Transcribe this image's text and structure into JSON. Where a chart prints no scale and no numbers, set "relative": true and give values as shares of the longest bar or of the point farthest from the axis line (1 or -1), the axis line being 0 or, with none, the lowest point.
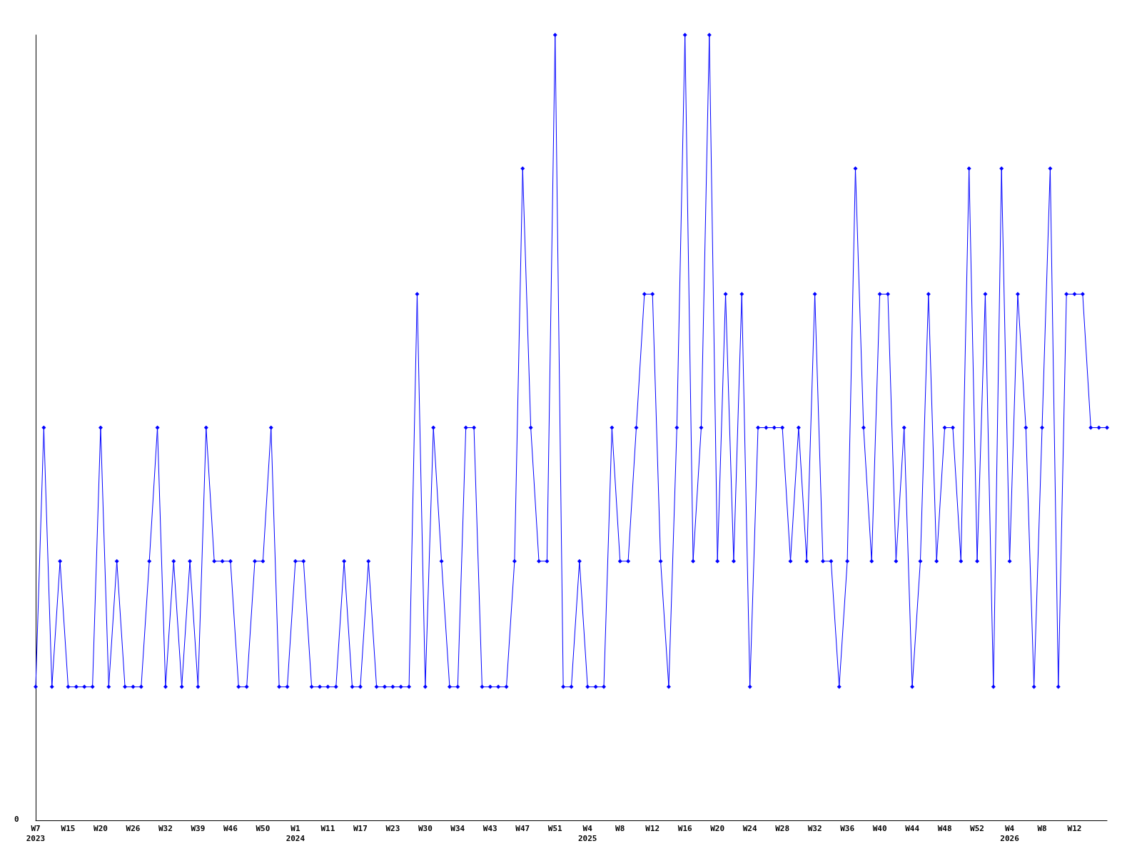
{
  "chart_data": {
    "type": "line",
    "relative": true,
    "marker": "diamond",
    "line_style": "solid",
    "grid": false,
    "annotations": [
      "0"
    ],
    "categories": [
      "W7\n2023",
      null,
      null,
      null,
      "W15",
      null,
      null,
      null,
      "W20",
      null,
      null,
      null,
      "W26",
      null,
      null,
      null,
      "W32",
      null,
      null,
      null,
      "W39",
      null,
      null,
      null,
      "W46",
      null,
      null,
      null,
      "W50",
      null,
      null,
      null,
      "W1\n2024",
      null,
      null,
      null,
      "W11",
      null,
      null,
      null,
      "W17",
      null,
      null,
      null,
      "W23",
      null,
      null,
      null,
      "W30",
      null,
      null,
      null,
      "W34",
      null,
      null,
      null,
      "W43",
      null,
      null,
      null,
      "W47",
      null,
      null,
      null,
      "W51",
      null,
      null,
      null,
      "W4\n2025",
      null,
      null,
      null,
      "W8",
      null,
      null,
      null,
      "W12",
      null,
      null,
      null,
      "W16",
      null,
      null,
      null,
      "W20",
      null,
      null,
      null,
      "W24",
      null,
      null,
      null,
      "W28",
      null,
      null,
      null,
      "W32",
      null,
      null,
      null,
      "W36",
      null,
      null,
      null,
      "W40",
      null,
      null,
      null,
      "W44",
      null,
      null,
      null,
      "W48",
      null,
      null,
      null,
      "W52",
      null,
      null,
      null,
      "W4\n2026",
      null,
      null,
      null,
      "W8",
      null,
      null,
      null,
      "W12",
      null,
      null,
      null,
      null
    ],
    "series": [
      {
        "color": "#0000ff",
        "values": [
          0.17,
          0.5,
          0.17,
          0.33,
          0.17,
          0.17,
          0.17,
          0.17,
          0.5,
          0.17,
          0.33,
          0.17,
          0.17,
          0.17,
          0.33,
          0.5,
          0.17,
          0.33,
          0.17,
          0.33,
          0.17,
          0.5,
          0.33,
          0.33,
          0.33,
          0.17,
          0.17,
          0.33,
          0.33,
          0.5,
          0.17,
          0.17,
          0.33,
          0.33,
          0.17,
          0.17,
          0.17,
          0.17,
          0.33,
          0.17,
          0.17,
          0.33,
          0.17,
          0.17,
          0.17,
          0.17,
          0.17,
          0.67,
          0.17,
          0.5,
          0.33,
          0.17,
          0.17,
          0.5,
          0.5,
          0.17,
          0.17,
          0.17,
          0.17,
          0.33,
          0.83,
          0.5,
          0.33,
          0.33,
          1,
          0.17,
          0.17,
          0.33,
          0.17,
          0.17,
          0.17,
          0.5,
          0.33,
          0.33,
          0.5,
          0.67,
          0.67,
          0.33,
          0.17,
          0.5,
          1,
          0.33,
          0.5,
          1,
          0.33,
          0.67,
          0.33,
          0.67,
          0.17,
          0.5,
          0.5,
          0.5,
          0.5,
          0.33,
          0.5,
          0.33,
          0.67,
          0.33,
          0.33,
          0.17,
          0.33,
          0.83,
          0.5,
          0.33,
          0.67,
          0.67,
          0.33,
          0.5,
          0.17,
          0.33,
          0.67,
          0.33,
          0.5,
          0.5,
          0.33,
          0.83,
          0.33,
          0.67,
          0.17,
          0.83,
          0.33,
          0.67,
          0.5,
          0.17,
          0.5,
          0.83,
          0.17,
          0.67,
          0.67,
          0.67,
          0.5,
          0.5,
          0.5
        ]
      }
    ]
  }
}
